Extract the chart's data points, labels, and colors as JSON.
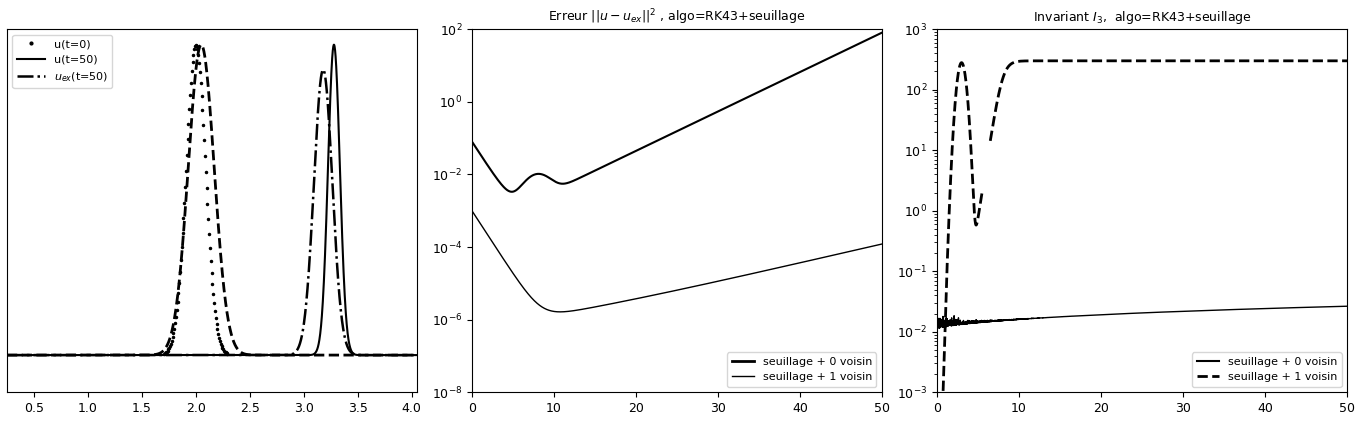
{
  "fig_width": 13.62,
  "fig_height": 4.22,
  "dpi": 100,
  "plot1": {
    "xlim": [
      0.25,
      4.05
    ],
    "ylim": [
      -0.12,
      1.05
    ],
    "xticks": [
      0.5,
      1.0,
      1.5,
      2.0,
      2.5,
      3.0,
      3.5,
      4.0
    ],
    "yticks": []
  },
  "plot2": {
    "title": "Erreur $|| u - u_{ex} ||^2$ , algo=RK43+seuillage",
    "xlim": [
      0,
      50
    ],
    "ylim_log": [
      -8,
      2
    ],
    "xticks": [
      0,
      10,
      20,
      30,
      40,
      50
    ]
  },
  "plot3": {
    "title": "Invariant $I_{3}$,  algo=RK43+seuillage",
    "xlim": [
      0,
      50
    ],
    "ylim_log": [
      -3,
      3
    ],
    "xticks": [
      0,
      10,
      20,
      30,
      40,
      50
    ]
  },
  "line_color": "black",
  "bg_color": "white"
}
